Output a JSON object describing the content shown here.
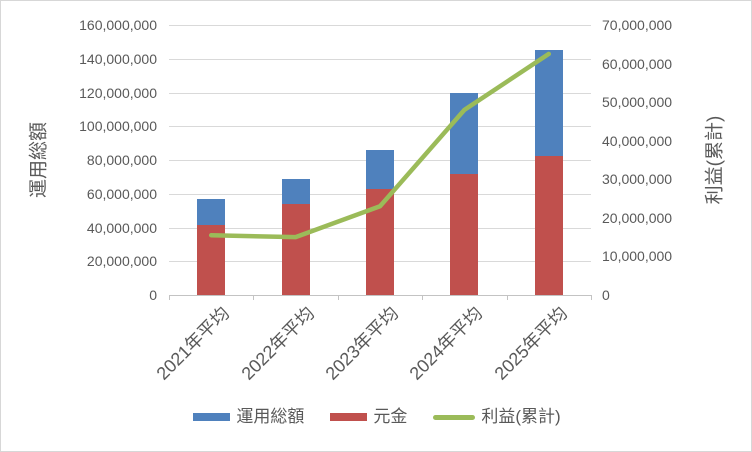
{
  "chart_data": {
    "type": "combo_bar_line",
    "title": "",
    "categories": [
      "2021年平均",
      "2022年平均",
      "2023年平均",
      "2024年平均",
      "2025年平均"
    ],
    "series": [
      {
        "name": "運用総額",
        "type": "bar",
        "axis": "left",
        "color": "#4F81BD",
        "values": [
          57000000,
          69000000,
          86000000,
          120000000,
          145000000
        ]
      },
      {
        "name": "元金",
        "type": "bar",
        "axis": "left",
        "color": "#C0504D",
        "values": [
          41500000,
          54000000,
          63000000,
          72000000,
          82500000
        ]
      },
      {
        "name": "利益(累計)",
        "type": "line",
        "axis": "right",
        "color": "#9BBB59",
        "values": [
          15500000,
          15000000,
          23000000,
          48000000,
          62500000
        ]
      }
    ],
    "left_axis": {
      "title": "運用総額",
      "min": 0,
      "max": 160000000,
      "step": 20000000,
      "tick_labels": [
        "0",
        "20,000,000",
        "40,000,000",
        "60,000,000",
        "80,000,000",
        "100,000,000",
        "120,000,000",
        "140,000,000",
        "160,000,000"
      ]
    },
    "right_axis": {
      "title": "利益(累計)",
      "min": 0,
      "max": 70000000,
      "step": 10000000,
      "tick_labels": [
        "0",
        "10,000,000",
        "20,000,000",
        "30,000,000",
        "40,000,000",
        "50,000,000",
        "60,000,000",
        "70,000,000"
      ]
    },
    "legend": {
      "position": "bottom"
    },
    "style": {
      "grid_color": "#D9D9D9",
      "axis_line_color": "#C3C3C3",
      "text_color": "#595959",
      "background": "#FFFFFF",
      "grid": "on"
    }
  }
}
